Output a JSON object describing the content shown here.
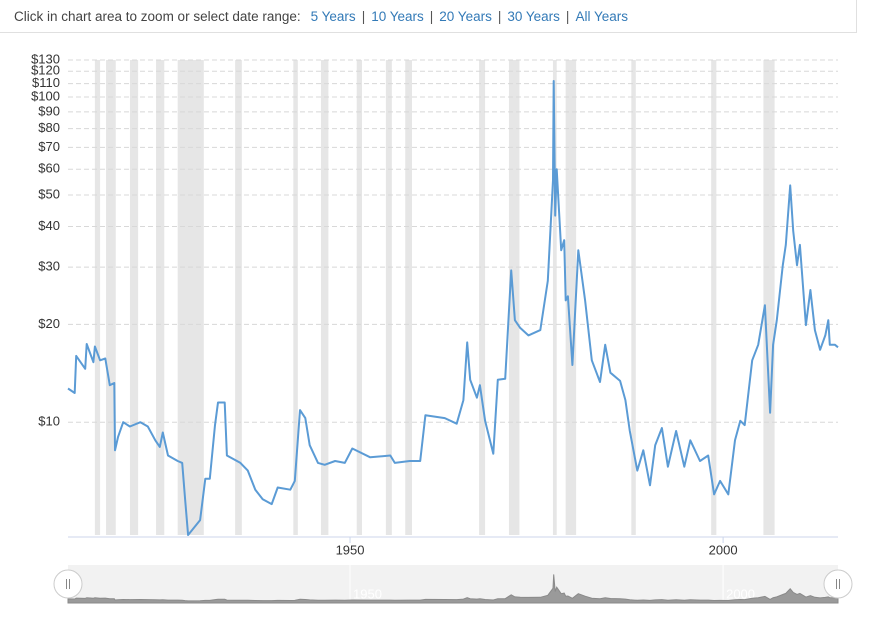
{
  "range_selector": {
    "prompt": "Click in chart area to zoom or select date range:",
    "separator": "|",
    "options": [
      "5 Years",
      "10 Years",
      "20 Years",
      "30 Years",
      "All Years"
    ]
  },
  "chart_data": {
    "type": "line",
    "color": "#5b9bd5",
    "log_scale": true,
    "grid": true,
    "xlim": [
      1912.2,
      2015.4
    ],
    "xticks": [
      1950,
      2000
    ],
    "ylim": [
      4.5,
      130
    ],
    "yticks": [
      {
        "value": 10,
        "label": "$10"
      },
      {
        "value": 20,
        "label": "$20"
      },
      {
        "value": 30,
        "label": "$30"
      },
      {
        "value": 40,
        "label": "$40"
      },
      {
        "value": 50,
        "label": "$50"
      },
      {
        "value": 60,
        "label": "$60"
      },
      {
        "value": 70,
        "label": "$70"
      },
      {
        "value": 80,
        "label": "$80"
      },
      {
        "value": 90,
        "label": "$90"
      },
      {
        "value": 100,
        "label": "$100"
      },
      {
        "value": 110,
        "label": "$110"
      },
      {
        "value": 120,
        "label": "$120"
      },
      {
        "value": 130,
        "label": "$130"
      }
    ],
    "recession_color": "#e6e6e6",
    "recessions": [
      [
        1915.8,
        1916.5
      ],
      [
        1917.3,
        1918.6
      ],
      [
        1920.5,
        1921.6
      ],
      [
        1924.0,
        1925.1
      ],
      [
        1926.9,
        1930.4
      ],
      [
        1934.6,
        1935.5
      ],
      [
        1942.4,
        1943.0
      ],
      [
        1946.1,
        1947.1
      ],
      [
        1950.9,
        1951.6
      ],
      [
        1954.8,
        1955.6
      ],
      [
        1957.4,
        1958.3
      ],
      [
        1967.3,
        1968.1
      ],
      [
        1971.3,
        1972.7
      ],
      [
        1977.2,
        1977.7
      ],
      [
        1978.9,
        1980.3
      ],
      [
        1987.7,
        1988.3
      ],
      [
        1998.4,
        1999.1
      ],
      [
        2005.4,
        2006.9
      ]
    ],
    "x": [
      1912.2,
      1913.1,
      1913.3,
      1914.5,
      1914.7,
      1915.6,
      1915.8,
      1916.5,
      1917.2,
      1917.8,
      1918.4,
      1918.5,
      1918.9,
      1919.6,
      1920.5,
      1921.9,
      1922.9,
      1923.9,
      1924.5,
      1924.9,
      1925.6,
      1926.9,
      1927.5,
      1927.9,
      1928.3,
      1929.9,
      1930.6,
      1931.2,
      1931.9,
      1932.3,
      1933.2,
      1933.5,
      1935.3,
      1936.3,
      1937.3,
      1938.3,
      1939.5,
      1940.3,
      1942.0,
      1942.6,
      1943.3,
      1944.0,
      1944.6,
      1945.7,
      1946.6,
      1948.0,
      1949.3,
      1950.3,
      1952.7,
      1955.4,
      1956.0,
      1958.0,
      1959.4,
      1960.1,
      1962.7,
      1964.3,
      1965.2,
      1965.7,
      1966.1,
      1967.0,
      1967.4,
      1968.1,
      1969.2,
      1969.8,
      1970.8,
      1971.6,
      1972.1,
      1972.8,
      1973.9,
      1975.5,
      1976.5,
      1977.2,
      1977.3,
      1977.5,
      1977.7,
      1978.3,
      1978.7,
      1978.9,
      1979.2,
      1979.8,
      1980.6,
      1981.5,
      1982.4,
      1983.5,
      1984.2,
      1984.9,
      1986.2,
      1986.9,
      1987.5,
      1988.5,
      1989.3,
      1990.2,
      1990.9,
      1991.8,
      1992.6,
      1993.7,
      1994.8,
      1995.6,
      1996.9,
      1998.0,
      1998.8,
      1999.6,
      2000.7,
      2001.6,
      2002.3,
      2002.9,
      2003.9,
      2004.7,
      2005.6,
      2006.3,
      2006.7,
      2007.2,
      2008.0,
      2008.4,
      2009.0,
      2009.4,
      2009.9,
      2010.3,
      2011.1,
      2011.7,
      2012.3,
      2013.0,
      2013.7,
      2014.1,
      2014.3,
      2015.0,
      2015.4
    ],
    "values": [
      12.7,
      12.3,
      16.0,
      14.6,
      17.4,
      15.3,
      17.1,
      15.5,
      15.7,
      13.0,
      13.2,
      8.2,
      9.0,
      10.0,
      9.7,
      10.0,
      9.7,
      8.8,
      8.4,
      9.3,
      7.9,
      7.6,
      7.5,
      5.8,
      4.5,
      5.0,
      6.7,
      6.7,
      9.8,
      11.5,
      11.5,
      7.9,
      7.5,
      7.1,
      6.2,
      5.8,
      5.6,
      6.3,
      6.2,
      6.6,
      10.9,
      10.3,
      8.5,
      7.5,
      7.4,
      7.6,
      7.5,
      8.3,
      7.8,
      7.9,
      7.5,
      7.6,
      7.6,
      10.5,
      10.3,
      9.9,
      11.7,
      17.6,
      13.5,
      11.9,
      13.0,
      10.1,
      8.0,
      13.5,
      13.6,
      29.3,
      20.6,
      19.5,
      18.5,
      19.2,
      27.2,
      55.5,
      112,
      43.2,
      60,
      33.8,
      36.3,
      23.7,
      24.4,
      15.0,
      33.8,
      23.7,
      15.5,
      13.3,
      17.3,
      14.2,
      13.4,
      11.7,
      9.4,
      7.1,
      8.2,
      6.4,
      8.5,
      9.6,
      7.3,
      9.4,
      7.3,
      8.8,
      7.6,
      7.9,
      6.0,
      6.6,
      6.0,
      8.8,
      10.1,
      9.8,
      15.5,
      17.3,
      22.9,
      10.7,
      17.3,
      20.6,
      30.4,
      35.1,
      53.5,
      38.8,
      30.4,
      35.1,
      19.9,
      25.5,
      19.2,
      16.7,
      18.5,
      20.6,
      17.3,
      17.3,
      17.0
    ]
  }
}
